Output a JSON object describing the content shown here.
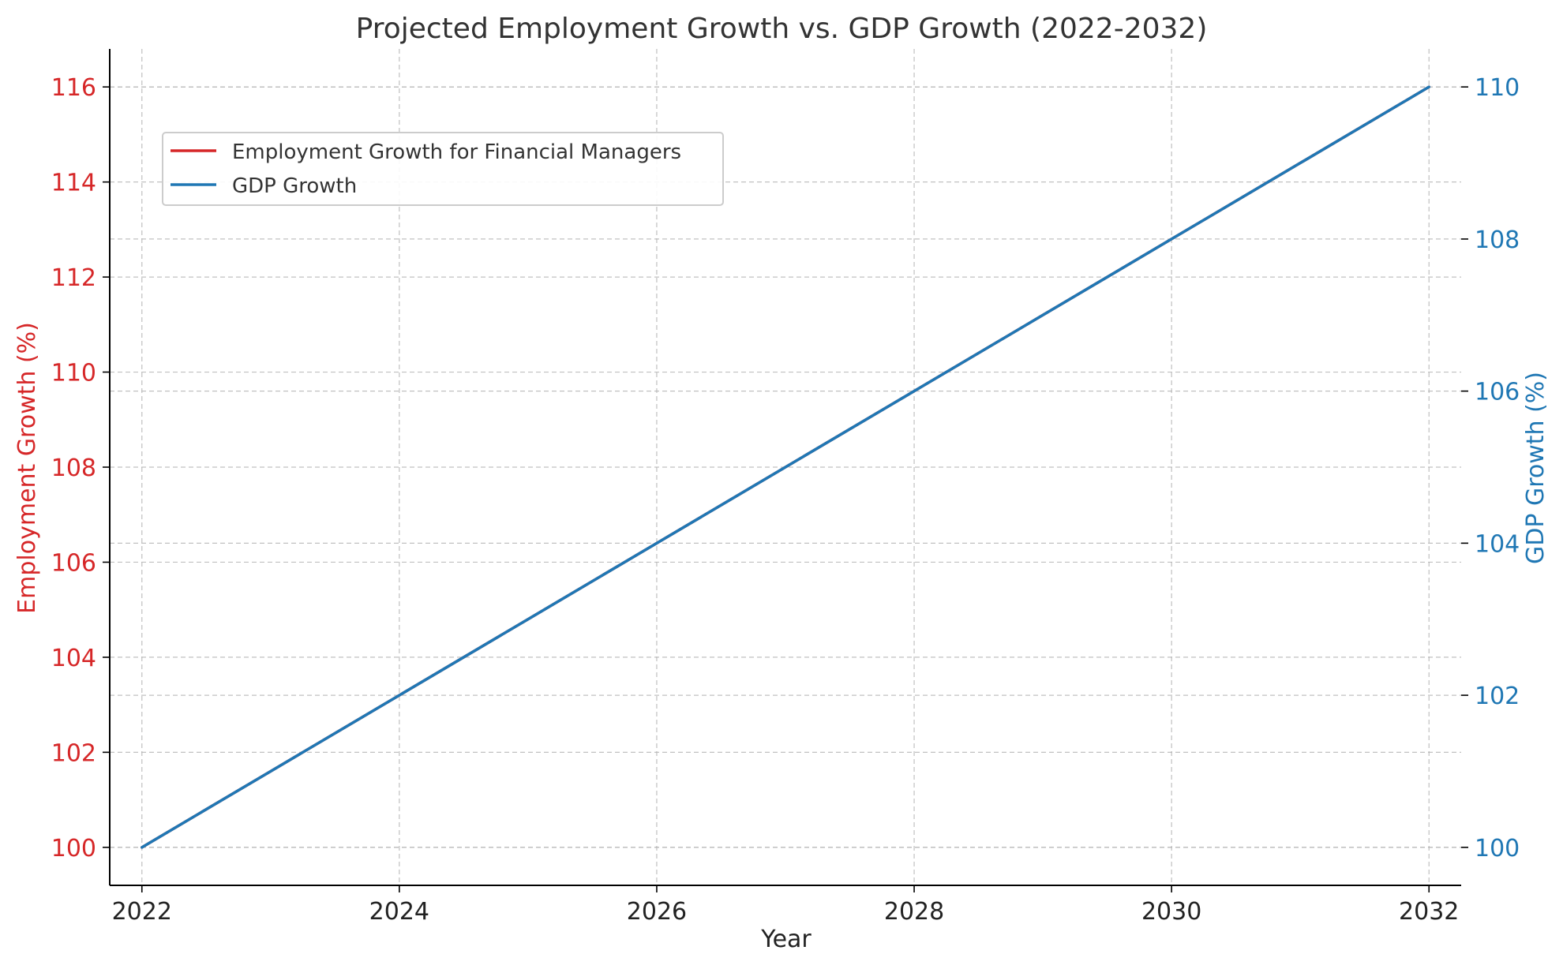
{
  "chart_data": {
    "type": "line",
    "title": "Projected Employment Growth vs. GDP Growth (2022-2032)",
    "xlabel": "Year",
    "ylabel_left": "Employment Growth (%)",
    "ylabel_right": "GDP Growth (%)",
    "x": [
      2022,
      2023,
      2024,
      2025,
      2026,
      2027,
      2028,
      2029,
      2030,
      2031,
      2032
    ],
    "x_ticks": [
      2022,
      2024,
      2026,
      2028,
      2030,
      2032
    ],
    "xlim": [
      2021.75,
      2032.25
    ],
    "ylim_left": [
      99.2,
      116.8
    ],
    "ylim_right": [
      99.5,
      110.5
    ],
    "y_ticks_left": [
      100,
      102,
      104,
      106,
      108,
      110,
      112,
      114,
      116
    ],
    "y_ticks_right": [
      100,
      102,
      104,
      106,
      108,
      110
    ],
    "grid": true,
    "legend_position": "upper-left",
    "series": [
      {
        "name": "Employment Growth for Financial Managers",
        "axis": "left",
        "color": "#d62728",
        "values": [
          100.0,
          101.6,
          103.2,
          104.8,
          106.4,
          108.0,
          109.6,
          111.2,
          112.8,
          114.4,
          116.0
        ]
      },
      {
        "name": "GDP Growth",
        "axis": "right",
        "color": "#1f77b4",
        "values": [
          100,
          101,
          102,
          103,
          104,
          105,
          106,
          107,
          108,
          109,
          110
        ]
      }
    ],
    "colors": {
      "left_axis": "#d62728",
      "right_axis": "#1f77b4",
      "grid": "#b0b0b0",
      "text": "#333333"
    }
  }
}
